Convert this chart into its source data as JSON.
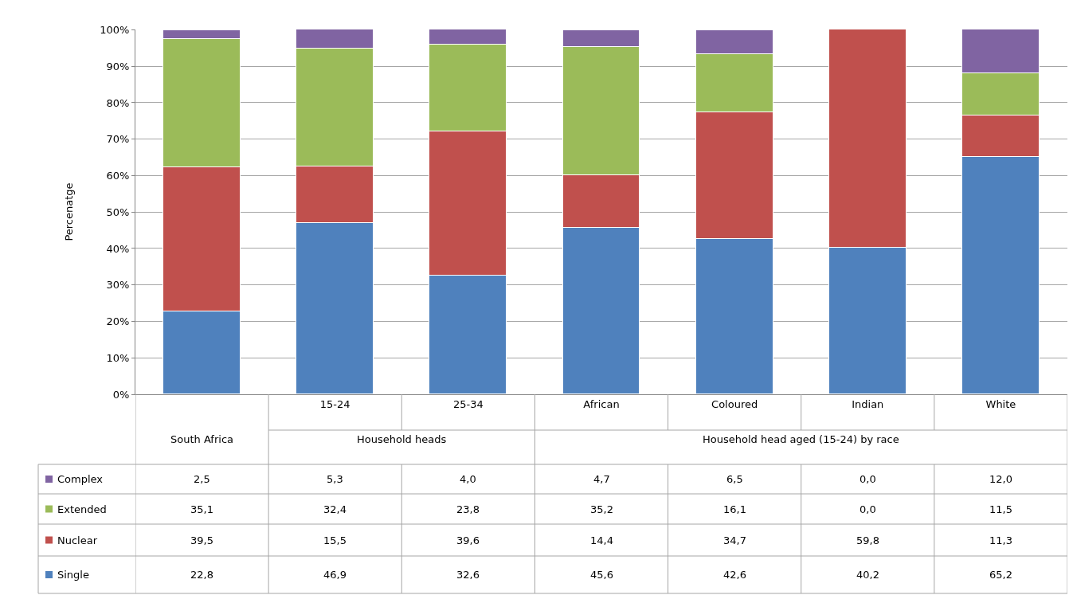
{
  "chart_data": {
    "type": "bar",
    "stacked": true,
    "ylabel": "Percenatge",
    "categories": [
      null,
      "15-24",
      "25-34",
      "African",
      "Coloured",
      "Indian",
      "White"
    ],
    "annotations": [
      "South Africa",
      "Household heads",
      "Household head aged (15-24) by race"
    ],
    "ylim": [
      0,
      100.1
    ],
    "yticks": [
      {
        "value": 0,
        "label": "0%"
      },
      {
        "value": 10,
        "label": "10%"
      },
      {
        "value": 20,
        "label": "20%"
      },
      {
        "value": 30,
        "label": "30%"
      },
      {
        "value": 40,
        "label": "40%"
      },
      {
        "value": 50,
        "label": "50%"
      },
      {
        "value": 60,
        "label": "60%"
      },
      {
        "value": 70,
        "label": "70%"
      },
      {
        "value": 80,
        "label": "80%"
      },
      {
        "value": 90,
        "label": "90%"
      },
      {
        "value": 100,
        "label": "100%"
      }
    ],
    "grid": "y",
    "legend": "bottom left",
    "series": [
      {
        "name": "Single",
        "color": "#4f81bd",
        "values": [
          22.8,
          46.9,
          32.6,
          45.6,
          42.6,
          40.2,
          65.2
        ],
        "value_labels": [
          "22,8",
          "46,9",
          "32,6",
          "45,6",
          "42,6",
          "40,2",
          "65,2"
        ]
      },
      {
        "name": "Nuclear",
        "color": "#c0504d",
        "values": [
          39.5,
          15.5,
          39.6,
          14.4,
          34.7,
          59.8,
          11.3
        ],
        "value_labels": [
          "39,5",
          "15,5",
          "39,6",
          "14,4",
          "34,7",
          "59,8",
          "11,3"
        ]
      },
      {
        "name": "Extended",
        "color": "#9bbb59",
        "values": [
          35.1,
          32.4,
          23.8,
          35.2,
          16.1,
          0.0,
          11.5
        ],
        "value_labels": [
          "35,1",
          "32,4",
          "23,8",
          "35,2",
          "16,1",
          "0,0",
          "11,5"
        ]
      },
      {
        "name": "Complex",
        "color": "#8064a2",
        "values": [
          2.5,
          5.3,
          4.0,
          4.7,
          6.5,
          0.0,
          12.0
        ],
        "value_labels": [
          "2,5",
          "5,3",
          "4,0",
          "4,7",
          "6,5",
          "0,0",
          "12,0"
        ]
      }
    ]
  }
}
